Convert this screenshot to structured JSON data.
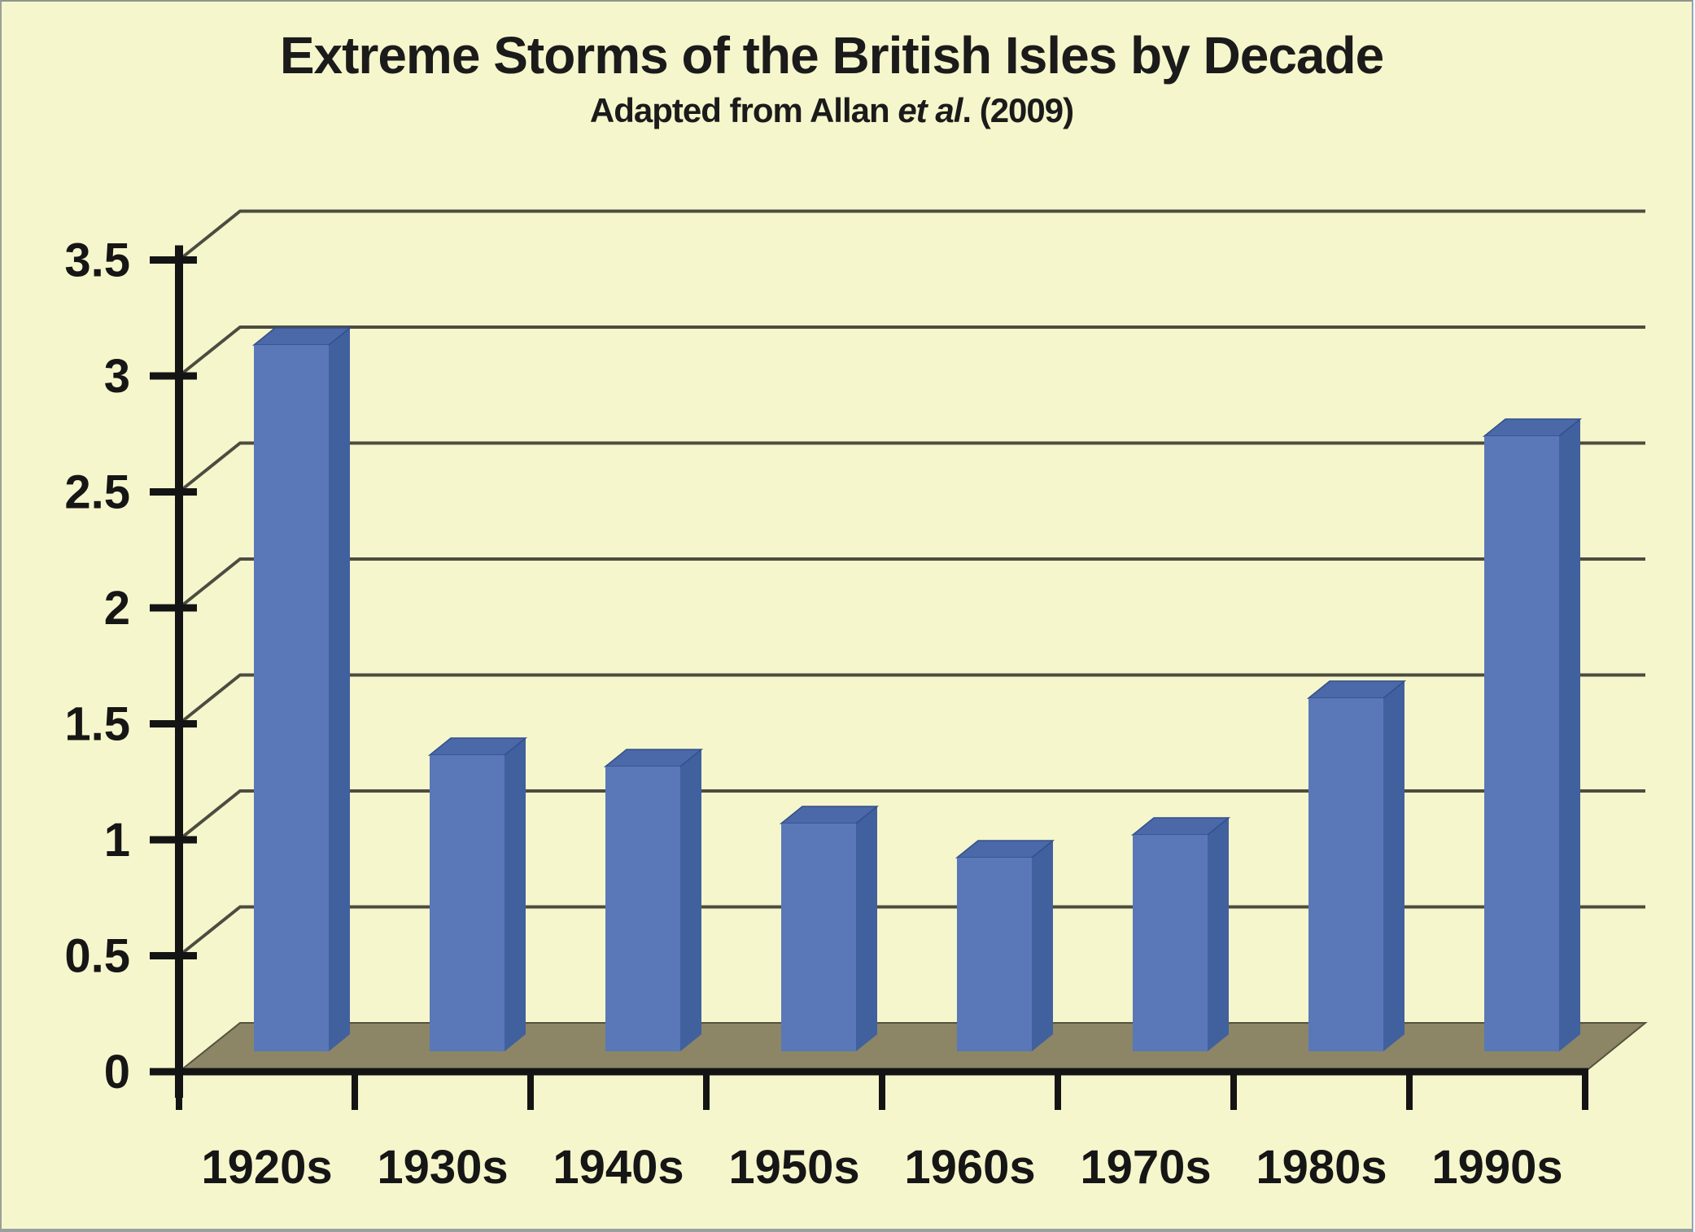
{
  "window": {
    "background": "#f6f6cc",
    "border_color": "#9aa096"
  },
  "chart_data": {
    "type": "bar",
    "projection": "3d-oblique",
    "title": "Extreme Storms of the British Isles by Decade",
    "subtitle_prefix": "Adapted from Allan ",
    "subtitle_italic": "et al",
    "subtitle_suffix": ". (2009)",
    "categories": [
      "1920s",
      "1930s",
      "1940s",
      "1950s",
      "1960s",
      "1970s",
      "1980s",
      "1990s"
    ],
    "values": [
      3.1,
      1.3,
      1.25,
      1.0,
      0.85,
      0.95,
      1.55,
      2.7
    ],
    "xlabel": "",
    "ylabel": "",
    "ylim": [
      0,
      3.5
    ],
    "ytick_step": 0.5,
    "ytick_labels": [
      "0",
      "0.5",
      "1",
      "1.5",
      "2",
      "2.5",
      "3",
      "3.5"
    ],
    "grid": true,
    "legend": false,
    "style": {
      "background": "#f6f6cc",
      "bar_front": "#5a78b7",
      "bar_side": "#41609e",
      "bar_top": "#4b68a8",
      "bar_edge": "#33508c",
      "floor": "#8c8666",
      "floor_edge": "#55523f",
      "gridline": "#4c4c40",
      "axis": "#141414",
      "text": "#1b1b1b"
    }
  }
}
